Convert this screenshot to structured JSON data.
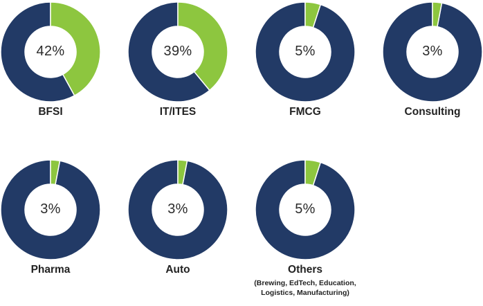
{
  "colors": {
    "share": "#8dc63f",
    "rest": "#223a66"
  },
  "chart_data": [
    {
      "type": "pie",
      "variant": "donut",
      "category": "BFSI",
      "value": 42,
      "label": "42%"
    },
    {
      "type": "pie",
      "variant": "donut",
      "category": "IT/ITES",
      "value": 39,
      "label": "39%"
    },
    {
      "type": "pie",
      "variant": "donut",
      "category": "FMCG",
      "value": 5,
      "label": "5%"
    },
    {
      "type": "pie",
      "variant": "donut",
      "category": "Consulting",
      "value": 3,
      "label": "3%"
    },
    {
      "type": "pie",
      "variant": "donut",
      "category": "Pharma",
      "value": 3,
      "label": "3%"
    },
    {
      "type": "pie",
      "variant": "donut",
      "category": "Auto",
      "value": 3,
      "label": "3%"
    },
    {
      "type": "pie",
      "variant": "donut",
      "category": "Others",
      "value": 5,
      "label": "5%",
      "note_lines": [
        "(Brewing, EdTech, Education,",
        "Logistics, Manufacturing)"
      ]
    }
  ]
}
